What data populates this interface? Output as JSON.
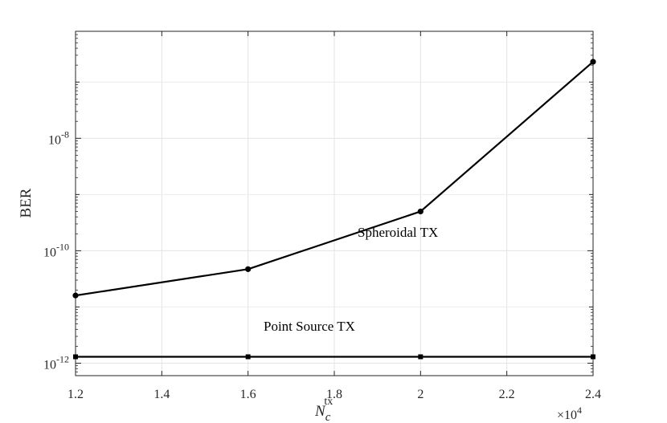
{
  "chart_data": {
    "type": "line",
    "title": "",
    "xlabel": "N_c^tx",
    "xlabel_main": "N",
    "xlabel_sub": "c",
    "xlabel_sup": "tx",
    "ylabel": "BER",
    "x_exponent_label": "×10",
    "x_exponent": "4",
    "x": [
      1.2,
      1.6,
      2.0,
      2.4
    ],
    "xlim": [
      1.2,
      2.4
    ],
    "xticks": [
      1.2,
      1.4,
      1.6,
      1.8,
      2.0,
      2.2,
      2.4
    ],
    "xtick_labels": [
      "1.2",
      "1.4",
      "1.6",
      "1.8",
      "2",
      "2.2",
      "2.4"
    ],
    "yscale": "log",
    "ylim": [
      6e-13,
      8e-07
    ],
    "yticks": [
      1e-12,
      1e-10,
      1e-08
    ],
    "ytick_base": "10",
    "ytick_exponents": [
      "-12",
      "-10",
      "-8"
    ],
    "grid": true,
    "series": [
      {
        "name": "Spheroidal TX",
        "marker": "circle",
        "color": "#000000",
        "values": [
          1.6e-11,
          4.7e-11,
          5e-10,
          2.3e-07
        ]
      },
      {
        "name": "Point Source TX",
        "marker": "square",
        "color": "#000000",
        "values": [
          1.3e-12,
          1.3e-12,
          1.3e-12,
          1.3e-12
        ]
      }
    ],
    "annotations": [
      "Spheroidal TX",
      "Point Source TX"
    ]
  }
}
